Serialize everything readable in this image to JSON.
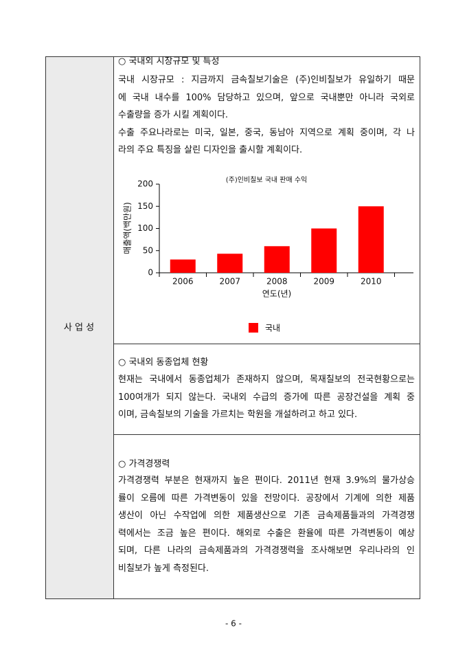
{
  "side_label": "사 업 성",
  "sections": [
    {
      "heading": "○ 국내외 시장규모 및 특성",
      "paragraphs": [
        [
          "국내 시장규모 : 지금까지 금속칠보기술은 (주)인비칠보가 유일하기 때문",
          "에 국내 내수를 100% 담당하고 있으며, 앞으로 국내뿐만 아니라 국외로",
          "수출량을 증가 시킬 계획이다."
        ],
        [
          "수출 주요나라로는 미국, 일본, 중국, 동남아 지역으로 계획 중이며, 각 나",
          "라의 주요 특징을 살린 디자인을 출시할 계획이다."
        ]
      ]
    },
    {
      "heading": "○ 국내외 동종업체 현황",
      "paragraphs": [
        [
          "현재는 국내에서 동종업체가 존재하지 않으며, 목재칠보의 전국현황으로는",
          "100여개가 되지 않는다. 국내외 수급의 증가에 따른 공장건설을 계획 중",
          "이며, 금속칠보의 기술을 가르치는 학원을 개설하려고 하고 있다."
        ]
      ]
    },
    {
      "heading": "○ 가격경쟁력",
      "paragraphs": [
        [
          "가격경쟁력 부분은 현재까지 높은 편이다. 2011년 현재 3.9%의 물가상승",
          "률이 오름에 따른 가격변동이 있을 전망이다. 공장에서 기계에 의한 제품",
          "생산이 아닌 수작업에 의한 제품생산으로 기존 금속제품들과의 가격경쟁",
          "력에서는 조금 높은 편이다. 해외로 수출은 환율에 따른 가격변동이 예상",
          "되며, 다른 나라의 금속제품과의 가격경쟁력을 조사해보면 우리나라의 인",
          "비칠보가 높게 측정된다."
        ]
      ]
    }
  ],
  "chart_data": {
    "type": "bar",
    "title": "(주)인비칠보 국내 판매 수익",
    "x_label": "연도(년)",
    "y_label": "매출액(백만원)",
    "categories": [
      "2006",
      "2007",
      "2008",
      "2009",
      "2010"
    ],
    "series": [
      {
        "name": "국내",
        "color": "#ff0000",
        "values": [
          30,
          43,
          60,
          100,
          150
        ]
      }
    ],
    "ylim": [
      0,
      200
    ],
    "yticks": [
      0,
      50,
      100,
      150,
      200
    ],
    "legend": "bottom"
  },
  "page_number": "- 6 -"
}
